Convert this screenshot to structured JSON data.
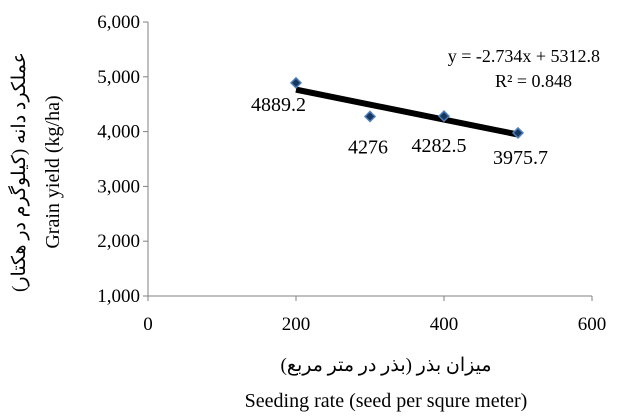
{
  "chart_data": {
    "type": "scatter",
    "x": [
      200,
      300,
      400,
      500
    ],
    "y": [
      4889.2,
      4276,
      4282.5,
      3975.7
    ],
    "data_labels": [
      "4889.2",
      "4276",
      "4282.5",
      "3975.7"
    ],
    "trendline": {
      "type": "linear",
      "slope": -2.734,
      "intercept": 5312.8,
      "x_range": [
        200,
        500
      ],
      "equation": "y = -2.734x + 5312.8",
      "r_squared": "R² = 0.848"
    },
    "xlim": [
      0,
      600
    ],
    "ylim": [
      1000,
      6000
    ],
    "x_ticks": [
      "0",
      "200",
      "400",
      "600"
    ],
    "y_ticks": [
      "1,000",
      "2,000",
      "3,000",
      "4,000",
      "5,000",
      "6,000"
    ],
    "xlabel": "Seeding rate (seed per squre meter)",
    "xlabel_fa": "میزان بذر (بذر در متر مربع)",
    "ylabel": "Grain yield  (kg/ha)",
    "ylabel_fa": "عملکرد دانه (کیلوگرم در هکتار)",
    "grid": false,
    "legend": "none",
    "colors": {
      "marker_fill": "#17375e",
      "marker_stroke": "#4f81bd",
      "trendline": "#000000",
      "axis": "#808080"
    }
  }
}
